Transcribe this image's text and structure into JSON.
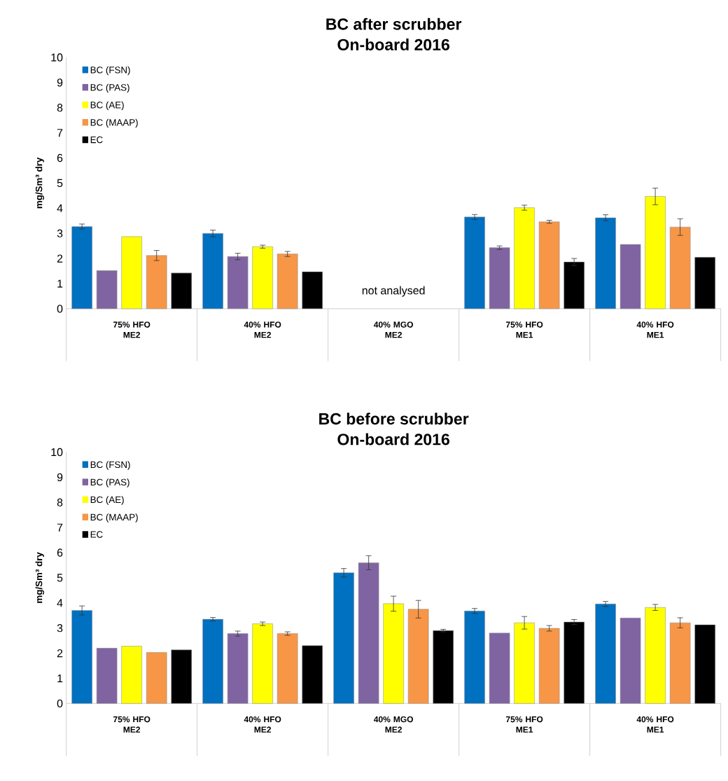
{
  "chart_data": [
    {
      "type": "bar",
      "title": "BC after scrubber",
      "subtitle": "On-board 2016",
      "ylabel": "mg/Sm³ dry",
      "categories": [
        "75% HFO ME2",
        "40% HFO ME2",
        "40% MGO ME2",
        "75% HFO ME1",
        "40% HFO ME1"
      ],
      "series": [
        {
          "name": "BC (FSN)",
          "color": "#0070c0",
          "values": [
            3.27,
            3.0,
            null,
            3.65,
            3.62
          ],
          "errors": [
            0.1,
            0.13,
            null,
            0.1,
            0.12
          ]
        },
        {
          "name": "BC (PAS)",
          "color": "#8064a2",
          "values": [
            1.52,
            2.08,
            null,
            2.43,
            2.56
          ],
          "errors": [
            null,
            0.13,
            null,
            0.07,
            null
          ]
        },
        {
          "name": "BC (AE)",
          "color": "#ffff00",
          "values": [
            2.87,
            2.47,
            null,
            4.02,
            4.47
          ],
          "errors": [
            null,
            0.06,
            null,
            0.1,
            0.33
          ]
        },
        {
          "name": "BC (MAAP)",
          "color": "#f79646",
          "values": [
            2.12,
            2.18,
            null,
            3.46,
            3.25
          ],
          "errors": [
            0.2,
            0.1,
            null,
            0.06,
            0.33
          ]
        },
        {
          "name": "EC",
          "color": "#000000",
          "values": [
            1.42,
            1.47,
            null,
            1.86,
            2.05
          ],
          "errors": [
            null,
            null,
            null,
            0.14,
            null
          ]
        }
      ],
      "annotations": [
        "not analysed"
      ],
      "ylim": [
        0,
        10
      ],
      "yticks": [
        0,
        1,
        2,
        3,
        4,
        5,
        6,
        7,
        8,
        9,
        10
      ],
      "grid": false,
      "legend": "top left"
    },
    {
      "type": "bar",
      "title": "BC before scrubber",
      "subtitle": "On-board 2016",
      "ylabel": "mg/Sm³ dry",
      "categories": [
        "75% HFO ME2",
        "40% HFO ME2",
        "40% MGO ME2",
        "75% HFO ME1",
        "40% HFO ME1"
      ],
      "series": [
        {
          "name": "BC (FSN)",
          "color": "#0070c0",
          "values": [
            3.7,
            3.35,
            5.2,
            3.68,
            3.96
          ],
          "errors": [
            0.18,
            0.07,
            0.17,
            0.1,
            0.1
          ]
        },
        {
          "name": "BC (PAS)",
          "color": "#8064a2",
          "values": [
            2.2,
            2.78,
            5.6,
            2.8,
            3.4
          ],
          "errors": [
            null,
            0.1,
            0.28,
            null,
            null
          ]
        },
        {
          "name": "BC (AE)",
          "color": "#ffff00",
          "values": [
            2.28,
            3.17,
            3.97,
            3.21,
            3.82
          ],
          "errors": [
            null,
            0.07,
            0.3,
            0.25,
            0.12
          ]
        },
        {
          "name": "BC (MAAP)",
          "color": "#f79646",
          "values": [
            2.03,
            2.78,
            3.75,
            2.99,
            3.21
          ],
          "errors": [
            null,
            0.07,
            0.35,
            0.11,
            0.2
          ]
        },
        {
          "name": "EC",
          "color": "#000000",
          "values": [
            2.13,
            2.3,
            2.9,
            3.24,
            3.13
          ],
          "errors": [
            null,
            null,
            0.05,
            0.1,
            null
          ]
        }
      ],
      "ylim": [
        0,
        10
      ],
      "yticks": [
        0,
        1,
        2,
        3,
        4,
        5,
        6,
        7,
        8,
        9,
        10
      ],
      "grid": false,
      "legend": "top left"
    }
  ]
}
